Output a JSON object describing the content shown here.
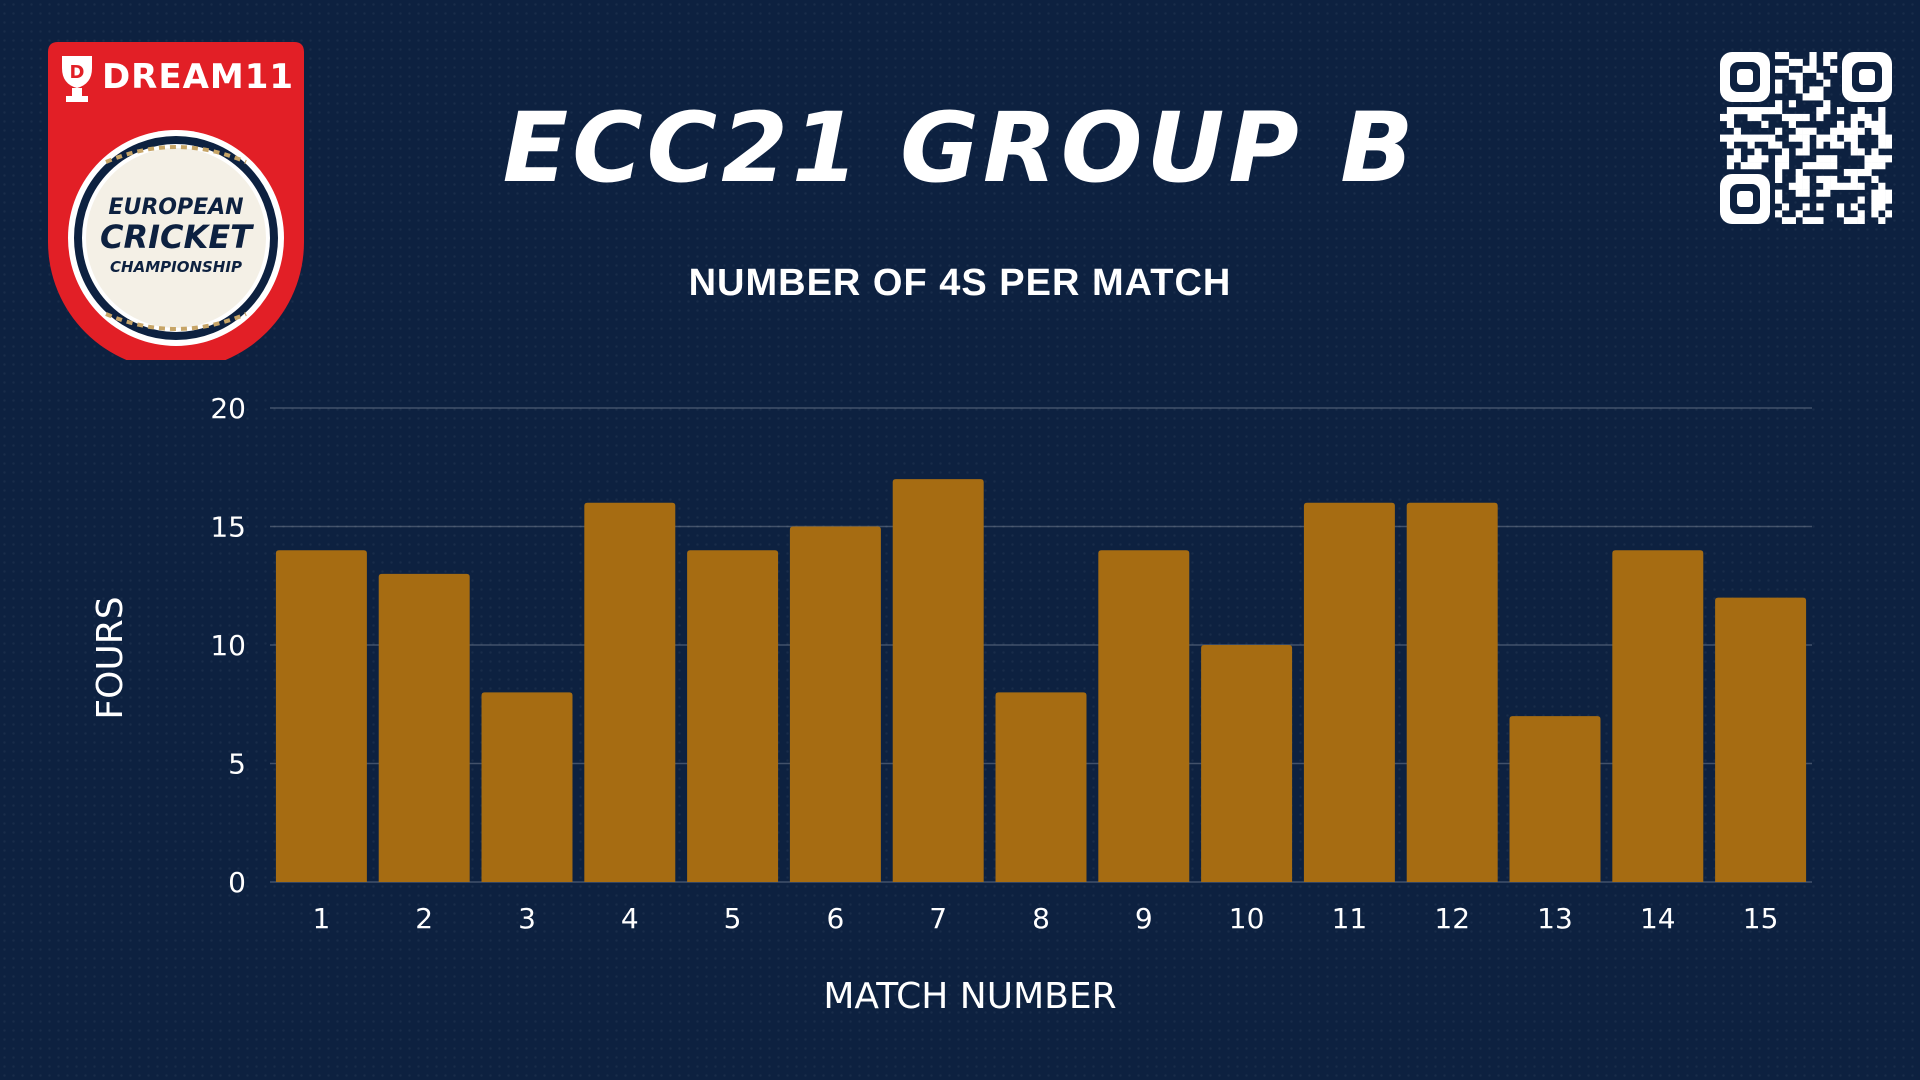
{
  "header": {
    "title": "ECC21 GROUP B",
    "subtitle": "NUMBER OF 4S PER MATCH"
  },
  "logo": {
    "brand_text": "DREAM11",
    "line1": "EUROPEAN",
    "line2": "CRICKET",
    "line3": "CHAMPIONSHIP"
  },
  "colors": {
    "background": "#0d2140",
    "bar": "#a66c12",
    "brand_red": "#e21f26",
    "logo_navy": "#0d2140",
    "logo_gold": "#c7a567"
  },
  "icons": [
    "dream11-trophy-icon",
    "qr-code-icon"
  ],
  "chart_data": {
    "type": "bar",
    "title": "NUMBER OF 4S PER MATCH",
    "xlabel": "MATCH NUMBER",
    "ylabel": "FOURS",
    "categories": [
      "1",
      "2",
      "3",
      "4",
      "5",
      "6",
      "7",
      "8",
      "9",
      "10",
      "11",
      "12",
      "13",
      "14",
      "15"
    ],
    "values": [
      14,
      13,
      8,
      16,
      14,
      15,
      17,
      8,
      14,
      10,
      16,
      16,
      7,
      14,
      12
    ],
    "ylim": [
      0,
      20
    ],
    "yticks": [
      "0",
      "5",
      "10",
      "15",
      "20"
    ],
    "grid": true,
    "legend": "none"
  }
}
